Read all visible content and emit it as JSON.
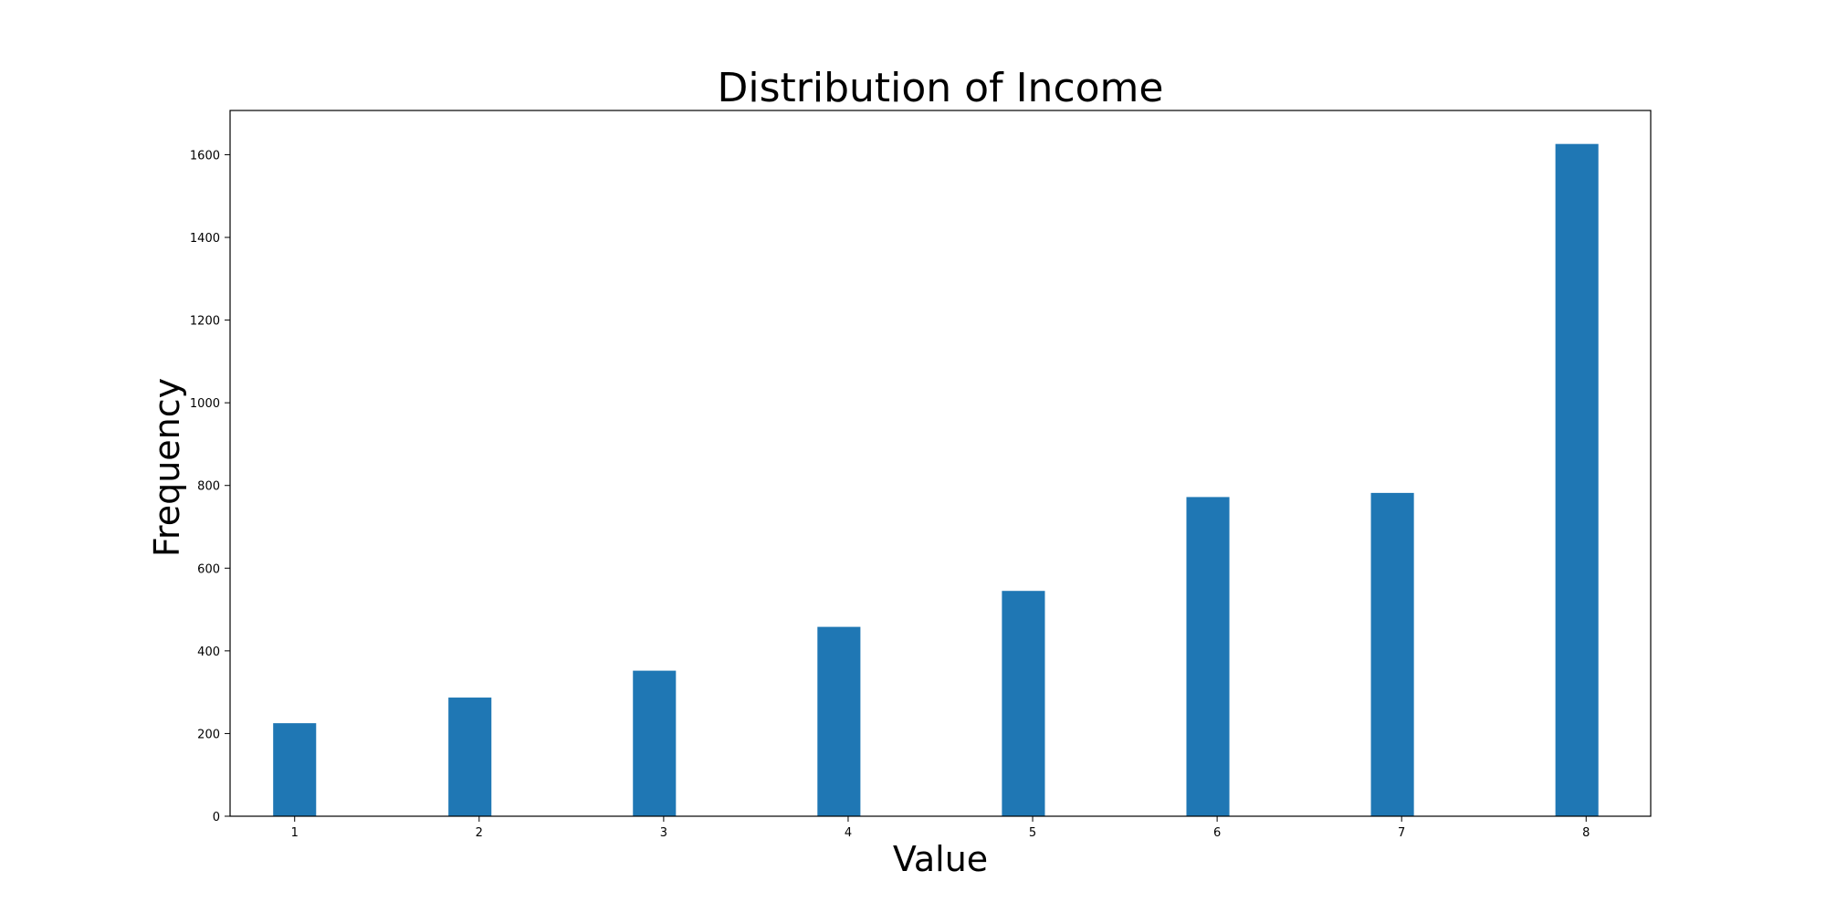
{
  "chart_data": {
    "type": "bar",
    "title": "Distribution of Income",
    "xlabel": "Value",
    "ylabel": "Frequency",
    "x": [
      1,
      1.95,
      2.95,
      3.95,
      4.95,
      5.95,
      6.95,
      7.95
    ],
    "x_tick_values": [
      1,
      2,
      3,
      4,
      5,
      6,
      7,
      8
    ],
    "x_tick_labels": [
      "1",
      "2",
      "3",
      "4",
      "5",
      "6",
      "7",
      "8"
    ],
    "values": [
      225,
      287,
      352,
      458,
      545,
      772,
      782,
      1626
    ],
    "bar_width": 0.233,
    "xlim": [
      0.65,
      8.35
    ],
    "ylim": [
      0,
      1707
    ],
    "y_tick_values": [
      0,
      200,
      400,
      600,
      800,
      1000,
      1200,
      1400,
      1600
    ],
    "y_tick_labels": [
      "0",
      "200",
      "400",
      "600",
      "800",
      "1000",
      "1200",
      "1400",
      "1600"
    ],
    "bar_color": "#1f77b4",
    "grid": false,
    "legend": "none"
  }
}
